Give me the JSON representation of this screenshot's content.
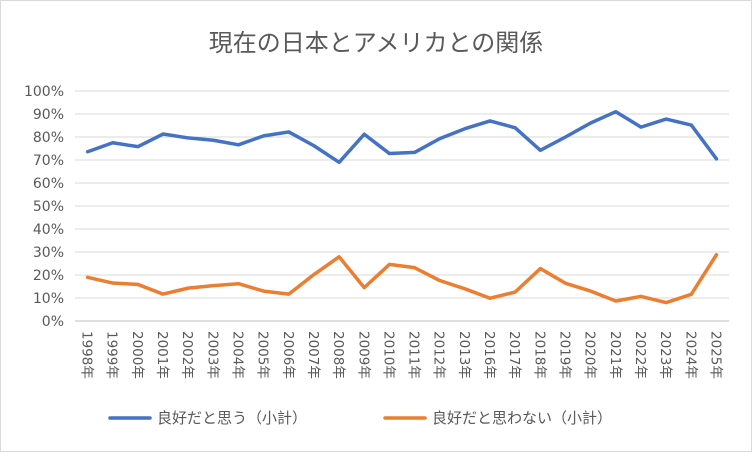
{
  "chart_data": {
    "type": "line",
    "title": "現在の日本とアメリカとの関係",
    "xlabel": "",
    "ylabel": "",
    "ylim": [
      0,
      100
    ],
    "yticks": [
      "0%",
      "10%",
      "20%",
      "30%",
      "40%",
      "50%",
      "60%",
      "70%",
      "80%",
      "90%",
      "100%"
    ],
    "categories": [
      "1998年",
      "1999年",
      "2000年",
      "2001年",
      "2002年",
      "2003年",
      "2004年",
      "2005年",
      "2006年",
      "2007年",
      "2008年",
      "2009年",
      "2010年",
      "2011年",
      "2012年",
      "2013年",
      "2016年",
      "2017年",
      "2018年",
      "2019年",
      "2020年",
      "2021年",
      "2022年",
      "2023年",
      "2024年",
      "2025年"
    ],
    "series": [
      {
        "name": "良好だと思う（小計）",
        "color": "#4472c4",
        "values": [
          73.6,
          77.5,
          75.8,
          81.3,
          79.6,
          78.6,
          76.6,
          80.5,
          82.2,
          76.2,
          69.0,
          81.2,
          72.8,
          73.3,
          79.3,
          83.6,
          87.0,
          84.0,
          74.2,
          80.0,
          86.1,
          91.0,
          84.3,
          87.8,
          85.2,
          70.5
        ]
      },
      {
        "name": "良好だと思わない（小計）",
        "color": "#ed7d31",
        "values": [
          19.0,
          16.5,
          15.9,
          11.7,
          14.3,
          15.4,
          16.2,
          13.0,
          11.7,
          20.2,
          27.9,
          14.5,
          24.6,
          23.2,
          17.6,
          14.0,
          9.9,
          12.6,
          22.8,
          16.4,
          13.0,
          8.7,
          10.7,
          8.0,
          11.6,
          28.8
        ]
      }
    ],
    "grid": "horizontal",
    "legend_position": "bottom"
  }
}
